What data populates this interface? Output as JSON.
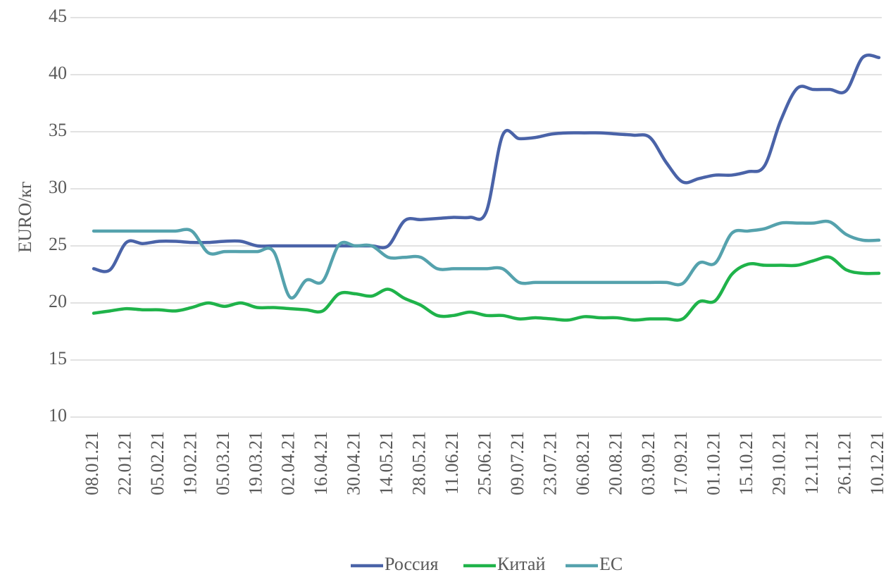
{
  "chart_data": {
    "type": "line",
    "y_label": "EURO/кг",
    "categories": [
      "08.01.21",
      null,
      "22.01.21",
      null,
      "05.02.21",
      null,
      "19.02.21",
      null,
      "05.03.21",
      null,
      "19.03.21",
      null,
      "02.04.21",
      null,
      "16.04.21",
      null,
      "30.04.21",
      null,
      "14.05.21",
      null,
      "28.05.21",
      null,
      "11.06.21",
      null,
      "25.06.21",
      null,
      "09.07.21",
      null,
      "23.07.21",
      null,
      "06.08.21",
      null,
      "20.08.21",
      null,
      "03.09.21",
      null,
      "17.09.21",
      null,
      "01.10.21",
      null,
      "15.10.21",
      null,
      "29.10.21",
      null,
      "12.11.21",
      null,
      "26.11.21",
      null,
      "10.12.21"
    ],
    "series": [
      {
        "name": "Россия",
        "color": "#4a63a8",
        "values": [
          23.0,
          22.9,
          25.3,
          25.2,
          25.4,
          25.4,
          25.3,
          25.3,
          25.4,
          25.4,
          25.0,
          25.0,
          25.0,
          25.0,
          25.0,
          25.0,
          25.0,
          25.0,
          25.0,
          27.2,
          27.3,
          27.4,
          27.5,
          27.5,
          28.0,
          34.7,
          34.4,
          34.5,
          34.8,
          34.9,
          34.9,
          34.9,
          34.8,
          34.7,
          34.5,
          32.3,
          30.6,
          30.9,
          31.2,
          31.2,
          31.5,
          32.0,
          36.0,
          38.8,
          38.7,
          38.7,
          38.6,
          41.5,
          41.5
        ]
      },
      {
        "name": "Китай",
        "color": "#1fb34a",
        "values": [
          19.1,
          19.3,
          19.5,
          19.4,
          19.4,
          19.3,
          19.6,
          20.0,
          19.7,
          20.0,
          19.6,
          19.6,
          19.5,
          19.4,
          19.3,
          20.8,
          20.8,
          20.6,
          21.2,
          20.4,
          19.8,
          18.9,
          18.9,
          19.2,
          18.9,
          18.9,
          18.6,
          18.7,
          18.6,
          18.5,
          18.8,
          18.7,
          18.7,
          18.5,
          18.6,
          18.6,
          18.6,
          20.1,
          20.2,
          22.5,
          23.4,
          23.3,
          23.3,
          23.3,
          23.7,
          24.0,
          22.9,
          22.6,
          22.6
        ]
      },
      {
        "name": "ЕС",
        "color": "#55a2ad",
        "values": [
          26.3,
          26.3,
          26.3,
          26.3,
          26.3,
          26.3,
          26.3,
          24.4,
          24.5,
          24.5,
          24.5,
          24.5,
          20.5,
          22.0,
          21.9,
          25.1,
          25.0,
          25.0,
          24.0,
          24.0,
          24.0,
          23.0,
          23.0,
          23.0,
          23.0,
          23.0,
          21.8,
          21.8,
          21.8,
          21.8,
          21.8,
          21.8,
          21.8,
          21.8,
          21.8,
          21.8,
          21.7,
          23.5,
          23.5,
          26.1,
          26.3,
          26.5,
          27.0,
          27.0,
          27.0,
          27.1,
          26.0,
          25.5,
          25.5
        ]
      }
    ],
    "ylim": [
      10,
      45
    ],
    "yticks": [
      10,
      15,
      20,
      25,
      30,
      35,
      40,
      45
    ],
    "grid": true,
    "legend": "bottom"
  }
}
